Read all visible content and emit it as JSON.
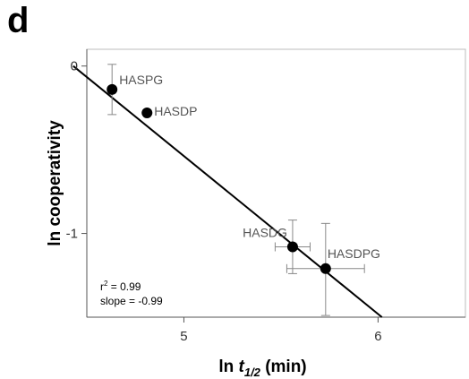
{
  "panel_label": "d",
  "chart_data": {
    "type": "scatter",
    "title": "",
    "xlabel_prefix": "ln ",
    "xlabel_var": "t",
    "xlabel_sub": "1/2",
    "xlabel_suffix": " (min)",
    "ylabel": "ln cooperativity",
    "xlim": [
      4.5,
      6.45
    ],
    "ylim": [
      -1.5,
      0.1
    ],
    "x_ticks": [
      5,
      6
    ],
    "x_tick_labels": [
      "5",
      "6"
    ],
    "y_ticks": [
      0,
      -1
    ],
    "y_tick_labels": [
      "0",
      "-1"
    ],
    "grid": false,
    "points": [
      {
        "label": "HASPG",
        "x": 4.63,
        "y": -0.14,
        "xerr": 0.0,
        "yerr": [
          0.15,
          0.15
        ]
      },
      {
        "label": "HASDP",
        "x": 4.81,
        "y": -0.28,
        "xerr": 0.0,
        "yerr": [
          0.0,
          0.0
        ]
      },
      {
        "label": "HASDG",
        "x": 5.56,
        "y": -1.08,
        "xerr": 0.09,
        "yerr": [
          0.16,
          0.16
        ]
      },
      {
        "label": "HASDPG",
        "x": 5.73,
        "y": -1.21,
        "xerr": 0.2,
        "yerr": [
          0.27,
          0.28
        ]
      }
    ],
    "fit_line": {
      "x": [
        4.43,
        6.02
      ],
      "y": [
        0.0,
        -1.5
      ]
    },
    "stats": {
      "r2_base": "r",
      "r2_sup": "2",
      "r2_rest": " = 0.99",
      "slope": "slope = -0.99"
    }
  }
}
